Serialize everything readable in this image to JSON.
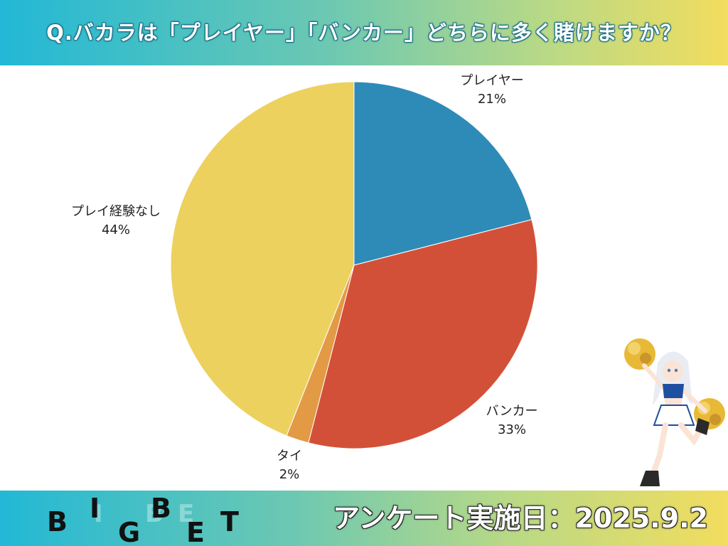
{
  "header": {
    "title": "Q.バカラは「プレイヤー」「バンカー」どちらに多く賭けますか？"
  },
  "chart_data": {
    "type": "pie",
    "title": "Q.バカラは「プレイヤー」「バンカー」どちらに多く賭けますか？",
    "slices": [
      {
        "label": "プレイヤー",
        "value": 21,
        "pct_label": "21%",
        "color": "#2e8bb8"
      },
      {
        "label": "バンカー",
        "value": 33,
        "pct_label": "33%",
        "color": "#d35038"
      },
      {
        "label": "タイ",
        "value": 2,
        "pct_label": "2%",
        "color": "#e39a45"
      },
      {
        "label": "プレイ経験なし",
        "value": 44,
        "pct_label": "44%",
        "color": "#edd15f"
      }
    ],
    "start": "12 o'clock",
    "direction": "clockwise",
    "legend": "none"
  },
  "footer": {
    "logo_letters": [
      "B",
      "I",
      "G",
      "B",
      "E",
      "T"
    ],
    "date_text": "アンケート実施日：2025.9.2"
  },
  "mascot": {
    "icon": "cheerleader-mascot-icon"
  }
}
